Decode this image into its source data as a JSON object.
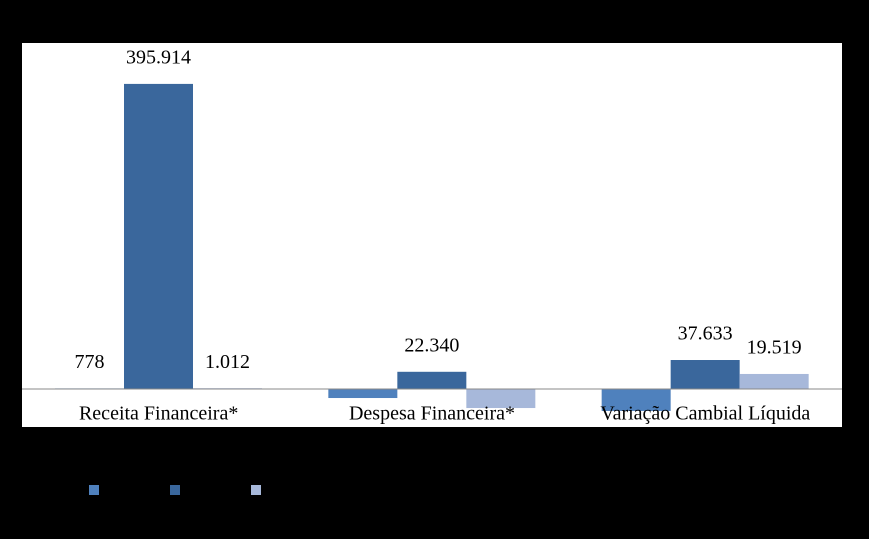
{
  "chart_data": {
    "type": "bar",
    "categories": [
      "Receita Financeira*",
      "Despesa Financeira*",
      "Variação Cambial Líquida"
    ],
    "series": [
      {
        "color": "#4f81bd",
        "values": [
          778,
          -11700,
          -28500
        ],
        "value_labels": [
          "778",
          null,
          null
        ]
      },
      {
        "color": "#3a679c",
        "values": [
          395914,
          22340,
          37633
        ],
        "value_labels": [
          "395.914",
          "22.340",
          "37.633"
        ]
      },
      {
        "color": "#a7b8da",
        "values": [
          1012,
          -24700,
          19519
        ],
        "value_labels": [
          "1.012",
          null,
          "19.519"
        ]
      }
    ],
    "ylim": [
      -49300,
      449000
    ]
  }
}
